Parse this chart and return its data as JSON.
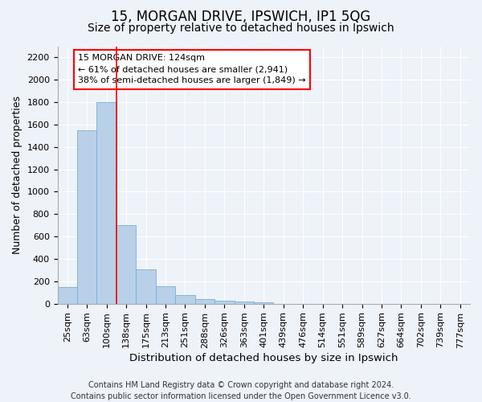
{
  "title": "15, MORGAN DRIVE, IPSWICH, IP1 5QG",
  "subtitle": "Size of property relative to detached houses in Ipswich",
  "xlabel": "Distribution of detached houses by size in Ipswich",
  "ylabel": "Number of detached properties",
  "categories": [
    "25sqm",
    "63sqm",
    "100sqm",
    "138sqm",
    "175sqm",
    "213sqm",
    "251sqm",
    "288sqm",
    "326sqm",
    "363sqm",
    "401sqm",
    "439sqm",
    "476sqm",
    "514sqm",
    "551sqm",
    "589sqm",
    "627sqm",
    "664sqm",
    "702sqm",
    "739sqm",
    "777sqm"
  ],
  "values": [
    150,
    1550,
    1800,
    700,
    310,
    155,
    75,
    40,
    25,
    20,
    15,
    0,
    0,
    0,
    0,
    0,
    0,
    0,
    0,
    0,
    0
  ],
  "bar_color": "#b8d0e8",
  "bar_edge_color": "#7aafd4",
  "property_line_x": 2.5,
  "property_line_color": "red",
  "annotation_text": "15 MORGAN DRIVE: 124sqm\n← 61% of detached houses are smaller (2,941)\n38% of semi-detached houses are larger (1,849) →",
  "annotation_box_color": "white",
  "annotation_box_edge_color": "red",
  "ylim": [
    0,
    2300
  ],
  "yticks": [
    0,
    200,
    400,
    600,
    800,
    1000,
    1200,
    1400,
    1600,
    1800,
    2000,
    2200
  ],
  "footer_line1": "Contains HM Land Registry data © Crown copyright and database right 2024.",
  "footer_line2": "Contains public sector information licensed under the Open Government Licence v3.0.",
  "background_color": "#eef2f9",
  "grid_color": "#ffffff",
  "title_fontsize": 12,
  "subtitle_fontsize": 10,
  "axis_label_fontsize": 9,
  "tick_fontsize": 8,
  "footer_fontsize": 7,
  "annotation_fontsize": 8
}
